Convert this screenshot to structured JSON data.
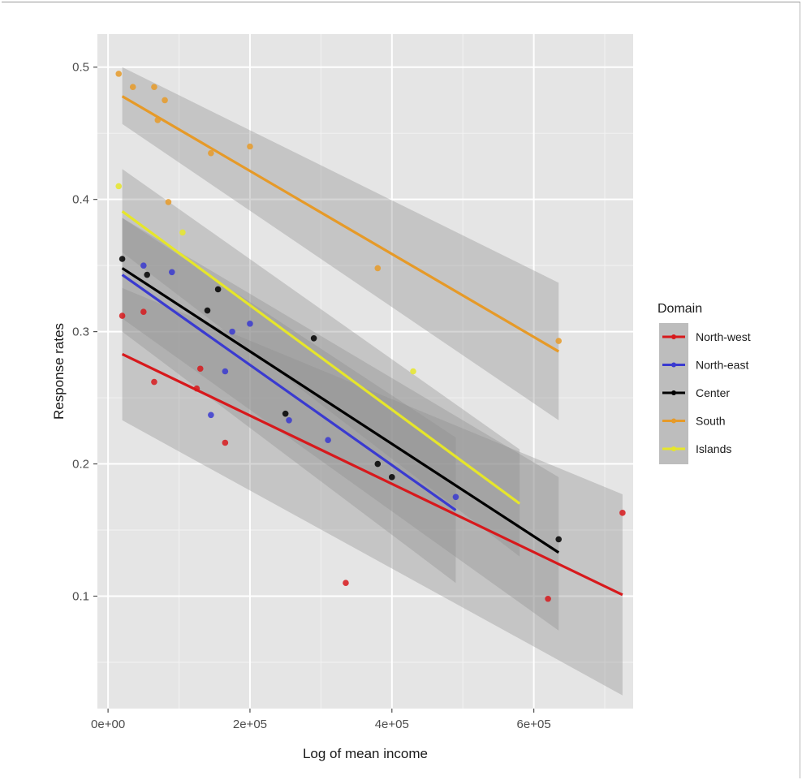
{
  "chart_data": {
    "type": "scatter",
    "xlabel": "Log of mean income",
    "ylabel": "Response rates",
    "xlim": [
      -15000,
      740000
    ],
    "ylim": [
      0.015,
      0.525
    ],
    "x_ticks": [
      0,
      200000,
      400000,
      600000
    ],
    "x_tick_labels": [
      "0e+00",
      "2e+05",
      "4e+05",
      "6e+05"
    ],
    "y_ticks": [
      0.1,
      0.2,
      0.3,
      0.4,
      0.5
    ],
    "y_tick_labels": [
      "0.1",
      "0.2",
      "0.3",
      "0.4",
      "0.5"
    ],
    "grid": true,
    "legend": {
      "title": "Domain",
      "position": "right"
    },
    "series": [
      {
        "name": "North-west",
        "color": "#d7191c",
        "points": [
          [
            20000,
            0.312
          ],
          [
            50000,
            0.315
          ],
          [
            65000,
            0.262
          ],
          [
            125000,
            0.257
          ],
          [
            130000,
            0.272
          ],
          [
            165000,
            0.216
          ],
          [
            335000,
            0.11
          ],
          [
            620000,
            0.098
          ],
          [
            725000,
            0.163
          ]
        ],
        "fit": {
          "x": [
            20000,
            725000
          ],
          "y": [
            0.283,
            0.101
          ]
        },
        "band": {
          "x": [
            20000,
            725000
          ],
          "lower": [
            0.233,
            0.025
          ],
          "upper": [
            0.333,
            0.177
          ]
        }
      },
      {
        "name": "North-east",
        "color": "#3a3ad0",
        "points": [
          [
            50000,
            0.35
          ],
          [
            90000,
            0.345
          ],
          [
            145000,
            0.237
          ],
          [
            165000,
            0.27
          ],
          [
            175000,
            0.3
          ],
          [
            200000,
            0.306
          ],
          [
            255000,
            0.233
          ],
          [
            310000,
            0.218
          ],
          [
            490000,
            0.175
          ]
        ],
        "fit": {
          "x": [
            20000,
            490000
          ],
          "y": [
            0.343,
            0.165
          ]
        },
        "band": {
          "x": [
            20000,
            490000
          ],
          "lower": [
            0.3,
            0.11
          ],
          "upper": [
            0.386,
            0.22
          ]
        }
      },
      {
        "name": "Center",
        "color": "#000000",
        "points": [
          [
            20000,
            0.355
          ],
          [
            55000,
            0.343
          ],
          [
            140000,
            0.316
          ],
          [
            155000,
            0.332
          ],
          [
            250000,
            0.238
          ],
          [
            290000,
            0.295
          ],
          [
            380000,
            0.2
          ],
          [
            400000,
            0.19
          ],
          [
            635000,
            0.143
          ]
        ],
        "fit": {
          "x": [
            20000,
            635000
          ],
          "y": [
            0.348,
            0.133
          ]
        },
        "band": {
          "x": [
            20000,
            635000
          ],
          "lower": [
            0.31,
            0.074
          ],
          "upper": [
            0.386,
            0.19
          ]
        }
      },
      {
        "name": "South",
        "color": "#e69a28",
        "points": [
          [
            15000,
            0.495
          ],
          [
            35000,
            0.485
          ],
          [
            65000,
            0.485
          ],
          [
            70000,
            0.46
          ],
          [
            80000,
            0.475
          ],
          [
            85000,
            0.398
          ],
          [
            145000,
            0.435
          ],
          [
            200000,
            0.44
          ],
          [
            380000,
            0.348
          ],
          [
            635000,
            0.293
          ]
        ],
        "fit": {
          "x": [
            20000,
            635000
          ],
          "y": [
            0.478,
            0.285
          ]
        },
        "band": {
          "x": [
            20000,
            635000
          ],
          "lower": [
            0.457,
            0.233
          ],
          "upper": [
            0.5,
            0.337
          ]
        }
      },
      {
        "name": "Islands",
        "color": "#e6e62a",
        "points": [
          [
            15000,
            0.41
          ],
          [
            105000,
            0.375
          ],
          [
            430000,
            0.27
          ]
        ],
        "fit": {
          "x": [
            20000,
            580000
          ],
          "y": [
            0.391,
            0.17
          ]
        },
        "band": {
          "x": [
            20000,
            580000
          ],
          "lower": [
            0.36,
            0.13
          ],
          "upper": [
            0.423,
            0.211
          ]
        }
      }
    ]
  }
}
